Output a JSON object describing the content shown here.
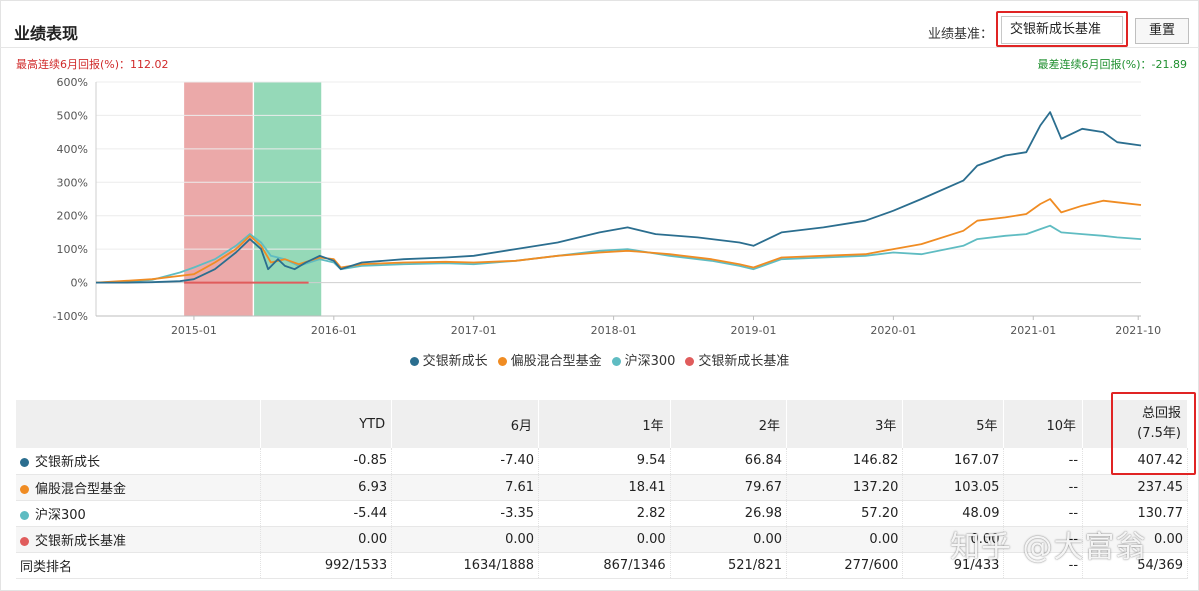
{
  "header": {
    "title": "业绩表现",
    "benchmark_label": "业绩基准：",
    "benchmark_value": "交银新成长基准",
    "reset_label": "重置"
  },
  "notes": {
    "best": "最高连续6月回报(%)：112.02",
    "worst": "最差连续6月回报(%)：-21.89"
  },
  "colors": {
    "fund": "#2b6e8f",
    "peer": "#f08c23",
    "index": "#5fbcc2",
    "bench": "#e05c5c",
    "best_band": "#e07b7b",
    "worst_band": "#5cc592"
  },
  "chart_data": {
    "type": "line",
    "x_ticks": [
      "2015-01",
      "2016-01",
      "2017-01",
      "2018-01",
      "2019-01",
      "2020-01",
      "2021-01",
      "2021-10"
    ],
    "y_ticks": [
      "600%",
      "500%",
      "400%",
      "300%",
      "200%",
      "100%",
      "0%",
      "-100%"
    ],
    "ylim": [
      -100,
      600
    ],
    "xlim": [
      2014.3,
      2021.77
    ],
    "highlight_bands": [
      {
        "kind": "best",
        "from": 2014.93,
        "to": 2015.42
      },
      {
        "kind": "worst",
        "from": 2015.43,
        "to": 2015.91
      }
    ],
    "series": [
      {
        "name": "交银新成长",
        "color_key": "fund",
        "points": [
          [
            2014.3,
            0
          ],
          [
            2014.5,
            0
          ],
          [
            2014.7,
            1
          ],
          [
            2014.9,
            4
          ],
          [
            2015.0,
            10
          ],
          [
            2015.15,
            40
          ],
          [
            2015.3,
            90
          ],
          [
            2015.4,
            130
          ],
          [
            2015.48,
            100
          ],
          [
            2015.53,
            40
          ],
          [
            2015.6,
            70
          ],
          [
            2015.65,
            50
          ],
          [
            2015.72,
            40
          ],
          [
            2015.8,
            60
          ],
          [
            2015.9,
            80
          ],
          [
            2016.0,
            65
          ],
          [
            2016.05,
            40
          ],
          [
            2016.2,
            60
          ],
          [
            2016.5,
            70
          ],
          [
            2016.8,
            75
          ],
          [
            2017.0,
            80
          ],
          [
            2017.3,
            100
          ],
          [
            2017.6,
            120
          ],
          [
            2017.9,
            150
          ],
          [
            2018.1,
            165
          ],
          [
            2018.3,
            145
          ],
          [
            2018.6,
            135
          ],
          [
            2018.9,
            120
          ],
          [
            2019.0,
            110
          ],
          [
            2019.2,
            150
          ],
          [
            2019.5,
            165
          ],
          [
            2019.8,
            185
          ],
          [
            2020.0,
            215
          ],
          [
            2020.2,
            250
          ],
          [
            2020.5,
            305
          ],
          [
            2020.6,
            350
          ],
          [
            2020.8,
            380
          ],
          [
            2020.95,
            390
          ],
          [
            2021.05,
            470
          ],
          [
            2021.12,
            510
          ],
          [
            2021.2,
            430
          ],
          [
            2021.35,
            460
          ],
          [
            2021.5,
            450
          ],
          [
            2021.6,
            420
          ],
          [
            2021.77,
            410
          ]
        ]
      },
      {
        "name": "偏股混合型基金",
        "color_key": "peer",
        "points": [
          [
            2014.3,
            0
          ],
          [
            2014.5,
            5
          ],
          [
            2014.7,
            10
          ],
          [
            2014.9,
            20
          ],
          [
            2015.0,
            25
          ],
          [
            2015.15,
            60
          ],
          [
            2015.3,
            100
          ],
          [
            2015.4,
            140
          ],
          [
            2015.48,
            110
          ],
          [
            2015.55,
            60
          ],
          [
            2015.65,
            70
          ],
          [
            2015.75,
            55
          ],
          [
            2015.9,
            75
          ],
          [
            2016.0,
            70
          ],
          [
            2016.05,
            45
          ],
          [
            2016.2,
            55
          ],
          [
            2016.5,
            60
          ],
          [
            2016.8,
            62
          ],
          [
            2017.0,
            60
          ],
          [
            2017.3,
            65
          ],
          [
            2017.6,
            80
          ],
          [
            2017.9,
            90
          ],
          [
            2018.1,
            95
          ],
          [
            2018.4,
            85
          ],
          [
            2018.7,
            70
          ],
          [
            2018.9,
            55
          ],
          [
            2019.0,
            45
          ],
          [
            2019.2,
            75
          ],
          [
            2019.5,
            80
          ],
          [
            2019.8,
            85
          ],
          [
            2020.0,
            100
          ],
          [
            2020.2,
            115
          ],
          [
            2020.5,
            155
          ],
          [
            2020.6,
            185
          ],
          [
            2020.8,
            195
          ],
          [
            2020.95,
            205
          ],
          [
            2021.05,
            235
          ],
          [
            2021.12,
            250
          ],
          [
            2021.2,
            210
          ],
          [
            2021.35,
            230
          ],
          [
            2021.5,
            245
          ],
          [
            2021.6,
            240
          ],
          [
            2021.77,
            232
          ]
        ]
      },
      {
        "name": "沪深300",
        "color_key": "index",
        "points": [
          [
            2014.3,
            0
          ],
          [
            2014.5,
            3
          ],
          [
            2014.7,
            8
          ],
          [
            2014.9,
            30
          ],
          [
            2015.0,
            45
          ],
          [
            2015.15,
            70
          ],
          [
            2015.3,
            110
          ],
          [
            2015.4,
            145
          ],
          [
            2015.48,
            120
          ],
          [
            2015.55,
            80
          ],
          [
            2015.65,
            70
          ],
          [
            2015.75,
            50
          ],
          [
            2015.9,
            70
          ],
          [
            2016.0,
            60
          ],
          [
            2016.05,
            40
          ],
          [
            2016.2,
            50
          ],
          [
            2016.5,
            55
          ],
          [
            2016.8,
            58
          ],
          [
            2017.0,
            55
          ],
          [
            2017.3,
            65
          ],
          [
            2017.6,
            80
          ],
          [
            2017.9,
            95
          ],
          [
            2018.1,
            100
          ],
          [
            2018.4,
            80
          ],
          [
            2018.7,
            65
          ],
          [
            2018.9,
            50
          ],
          [
            2019.0,
            40
          ],
          [
            2019.2,
            70
          ],
          [
            2019.5,
            75
          ],
          [
            2019.8,
            80
          ],
          [
            2020.0,
            90
          ],
          [
            2020.2,
            85
          ],
          [
            2020.5,
            110
          ],
          [
            2020.6,
            130
          ],
          [
            2020.8,
            140
          ],
          [
            2020.95,
            145
          ],
          [
            2021.05,
            160
          ],
          [
            2021.12,
            170
          ],
          [
            2021.2,
            150
          ],
          [
            2021.35,
            145
          ],
          [
            2021.5,
            140
          ],
          [
            2021.6,
            135
          ],
          [
            2021.77,
            130
          ]
        ]
      },
      {
        "name": "交银新成长基准",
        "color_key": "bench",
        "points": [
          [
            2014.93,
            0
          ],
          [
            2015.82,
            0
          ]
        ]
      }
    ]
  },
  "table": {
    "headers": [
      "",
      "YTD",
      "6月",
      "1年",
      "2年",
      "3年",
      "5年",
      "10年"
    ],
    "total_header_line1": "总回报",
    "total_header_line2": "(7.5年)",
    "rows": [
      {
        "name": "交银新成长",
        "color_key": "fund",
        "values": [
          "-0.85",
          "-7.40",
          "9.54",
          "66.84",
          "146.82",
          "167.07",
          "--",
          "407.42"
        ]
      },
      {
        "name": "偏股混合型基金",
        "color_key": "peer",
        "values": [
          "6.93",
          "7.61",
          "18.41",
          "79.67",
          "137.20",
          "103.05",
          "--",
          "237.45"
        ]
      },
      {
        "name": "沪深300",
        "color_key": "index",
        "values": [
          "-5.44",
          "-3.35",
          "2.82",
          "26.98",
          "57.20",
          "48.09",
          "--",
          "130.77"
        ]
      },
      {
        "name": "交银新成长基准",
        "color_key": "bench",
        "values": [
          "0.00",
          "0.00",
          "0.00",
          "0.00",
          "0.00",
          "0.00",
          "--",
          "0.00"
        ]
      }
    ],
    "rank_row": {
      "name": "同类排名",
      "values": [
        "992/1533",
        "1634/1888",
        "867/1346",
        "521/821",
        "277/600",
        "91/433",
        "--",
        "54/369"
      ]
    }
  },
  "watermark": "知乎 @大富翁"
}
